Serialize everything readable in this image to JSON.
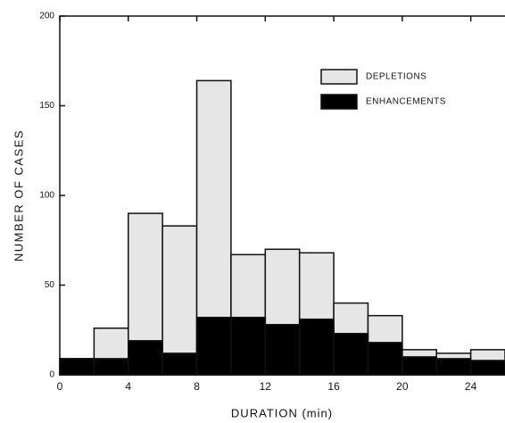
{
  "chart_data": {
    "type": "histogram",
    "xlabel": "DURATION (min)",
    "ylabel": "NUMBER OF CASES",
    "bins": [
      0,
      2,
      4,
      6,
      8,
      10,
      12,
      14,
      16,
      18,
      20,
      22,
      24,
      26
    ],
    "series": [
      {
        "name": "DEPLETIONS",
        "color": "#e6e6e6",
        "values": [
          9,
          26,
          90,
          83,
          164,
          67,
          70,
          68,
          40,
          33,
          14,
          12,
          14
        ]
      },
      {
        "name": "ENHANCEMENTS",
        "color": "#000000",
        "values": [
          9,
          9,
          19,
          12,
          32,
          32,
          28,
          31,
          23,
          18,
          10,
          9,
          8
        ]
      }
    ],
    "xlim": [
      0,
      26
    ],
    "ylim": [
      0,
      200
    ],
    "xticks": [
      0,
      4,
      8,
      12,
      16,
      20,
      24
    ],
    "yticks": [
      0,
      50,
      100,
      150,
      200
    ],
    "legend": "upper right"
  }
}
